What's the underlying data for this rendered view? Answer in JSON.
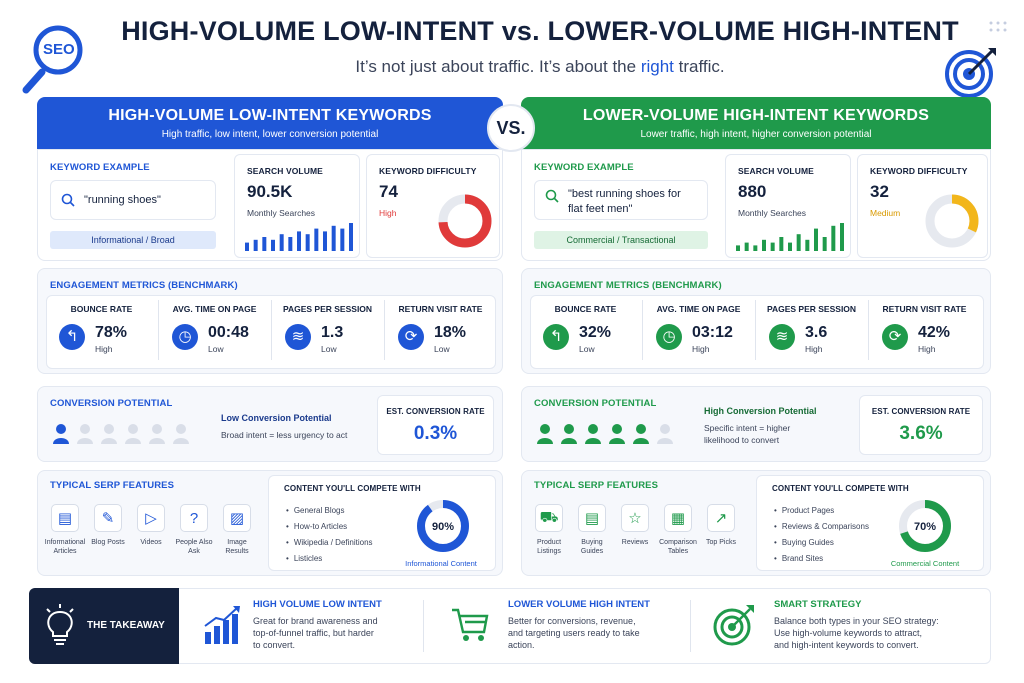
{
  "header": {
    "title": "HIGH-VOLUME LOW-INTENT vs. LOWER-VOLUME HIGH-INTENT",
    "subtitle_prefix": "It’s not just about traffic. It’s about the ",
    "subtitle_highlight": "right",
    "subtitle_suffix": " traffic.",
    "seo_badge": "SEO",
    "vs": "VS."
  },
  "left": {
    "title": "HIGH-VOLUME LOW-INTENT KEYWORDS",
    "subtitle": "High traffic, low intent, lower conversion potential",
    "keyword_label": "KEYWORD EXAMPLE",
    "keyword": "\"running shoes\"",
    "intent_tag": "Informational / Broad",
    "volume_label": "SEARCH VOLUME",
    "volume_value": "90.5K",
    "volume_caption": "Monthly Searches",
    "volume_bars": [
      3,
      4,
      5,
      4,
      6,
      5,
      7,
      6,
      8,
      7,
      9,
      8,
      10
    ],
    "difficulty_label": "KEYWORD DIFFICULTY",
    "difficulty_value": "74",
    "difficulty_level": "High",
    "difficulty_fraction": 0.74,
    "difficulty_color": "#e03a3a",
    "engagement_title": "ENGAGEMENT METRICS (BENCHMARK)",
    "metrics": [
      {
        "label": "BOUNCE RATE",
        "value": "78%",
        "level": "High",
        "icon": "↰"
      },
      {
        "label": "AVG. TIME ON PAGE",
        "value": "00:48",
        "level": "Low",
        "icon": "◷"
      },
      {
        "label": "PAGES PER SESSION",
        "value": "1.3",
        "level": "Low",
        "icon": "≋"
      },
      {
        "label": "RETURN VISIT RATE",
        "value": "18%",
        "level": "Low",
        "icon": "⟳"
      }
    ],
    "conversion_title": "CONVERSION POTENTIAL",
    "conversion_heading": "Low Conversion Potential",
    "conversion_desc": "Broad intent = less urgency to act",
    "conversion_people_active": 1,
    "conversion_people_total": 6,
    "conversion_rate_label": "EST. CONVERSION RATE",
    "conversion_rate": "0.3%",
    "serp_title": "TYPICAL SERP FEATURES",
    "serp_features": [
      {
        "label": "Informational\nArticles",
        "icon": "▤"
      },
      {
        "label": "Blog Posts",
        "icon": "✎"
      },
      {
        "label": "Videos",
        "icon": "▷"
      },
      {
        "label": "People Also\nAsk",
        "icon": "?"
      },
      {
        "label": "Image\nResults",
        "icon": "▨"
      }
    ],
    "compete_title": "CONTENT YOU'LL COMPETE WITH",
    "compete_items": [
      "General Blogs",
      "How-to Articles",
      "Wikipedia / Definitions",
      "Listicles"
    ],
    "compete_pct": "90%",
    "compete_fraction": 0.9,
    "compete_caption": "Informational Content"
  },
  "right": {
    "title": "LOWER-VOLUME HIGH-INTENT KEYWORDS",
    "subtitle": "Lower traffic, high intent, higher conversion potential",
    "keyword_label": "KEYWORD EXAMPLE",
    "keyword_line1": "\"best running shoes for",
    "keyword_line2": "flat feet men\"",
    "intent_tag": "Commercial / Transactional",
    "volume_label": "SEARCH VOLUME",
    "volume_value": "880",
    "volume_caption": "Monthly Searches",
    "volume_bars": [
      2,
      3,
      2,
      4,
      3,
      5,
      3,
      6,
      4,
      8,
      5,
      9,
      10
    ],
    "difficulty_label": "KEYWORD DIFFICULTY",
    "difficulty_value": "32",
    "difficulty_level": "Medium",
    "difficulty_fraction": 0.32,
    "difficulty_color": "#f2b61b",
    "engagement_title": "ENGAGEMENT METRICS (BENCHMARK)",
    "metrics": [
      {
        "label": "BOUNCE RATE",
        "value": "32%",
        "level": "Low",
        "icon": "↰"
      },
      {
        "label": "AVG. TIME ON PAGE",
        "value": "03:12",
        "level": "High",
        "icon": "◷"
      },
      {
        "label": "PAGES PER SESSION",
        "value": "3.6",
        "level": "High",
        "icon": "≋"
      },
      {
        "label": "RETURN VISIT RATE",
        "value": "42%",
        "level": "High",
        "icon": "⟳"
      }
    ],
    "conversion_title": "CONVERSION POTENTIAL",
    "conversion_heading": "High Conversion Potential",
    "conversion_desc_line1": "Specific intent = higher",
    "conversion_desc_line2": "likelihood to convert",
    "conversion_people_active": 5,
    "conversion_people_total": 6,
    "conversion_rate_label": "EST. CONVERSION RATE",
    "conversion_rate": "3.6%",
    "serp_title": "TYPICAL SERP FEATURES",
    "serp_features": [
      {
        "label": "Product\nListings",
        "icon": "⛟"
      },
      {
        "label": "Buying\nGuides",
        "icon": "▤"
      },
      {
        "label": "Reviews",
        "icon": "☆"
      },
      {
        "label": "Comparison\nTables",
        "icon": "▦"
      },
      {
        "label": "Top Picks",
        "icon": "↗"
      }
    ],
    "compete_title": "CONTENT YOU'LL COMPETE WITH",
    "compete_items": [
      "Product Pages",
      "Reviews & Comparisons",
      "Buying Guides",
      "Brand Sites"
    ],
    "compete_pct": "70%",
    "compete_fraction": 0.7,
    "compete_caption": "Commercial Content"
  },
  "takeaway": {
    "label": "THE TAKEAWAY",
    "items": [
      {
        "title": "HIGH VOLUME LOW INTENT",
        "line1": "Great for brand awareness and",
        "line2": "top-of-funnel traffic, but harder",
        "line3": "to convert."
      },
      {
        "title": "LOWER VOLUME HIGH INTENT",
        "line1": "Better for conversions, revenue,",
        "line2": "and targeting users ready to take",
        "line3": "action."
      },
      {
        "title": "SMART STRATEGY",
        "line1": "Balance both types in your SEO strategy:",
        "line2": "Use high-volume keywords to attract,",
        "line3": "and high-intent keywords to convert."
      }
    ]
  },
  "colors": {
    "blue": "#1f56d6",
    "green": "#1f9a4b",
    "navy": "#14213d",
    "red": "#e03a3a",
    "amber": "#f2b61b"
  }
}
